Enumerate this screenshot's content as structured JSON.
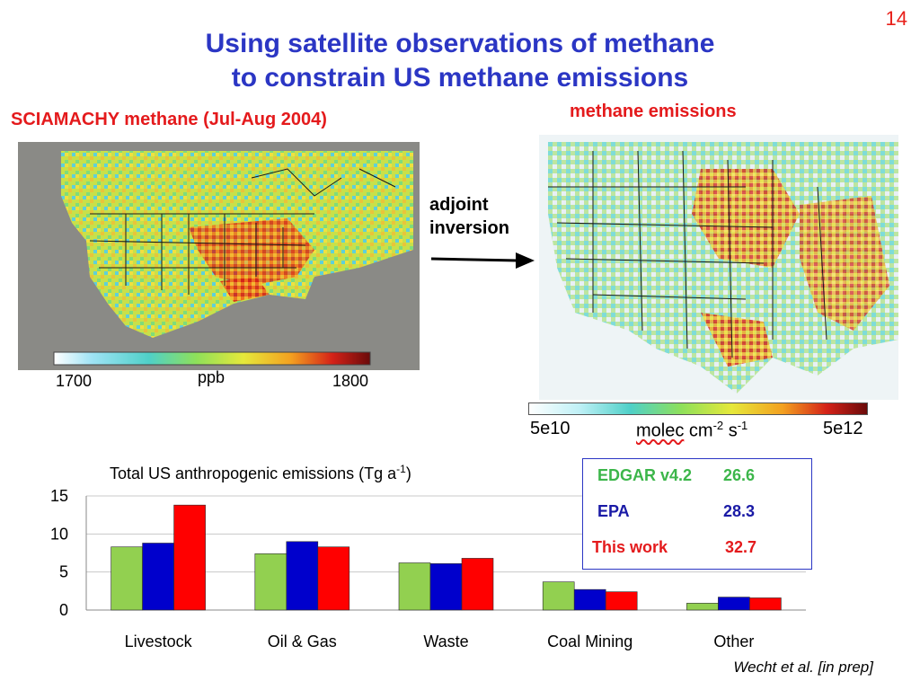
{
  "slide_number": "14",
  "title": {
    "line1": "Using satellite observations of methane",
    "line2": "to constrain US methane emissions"
  },
  "left_panel": {
    "label": "SCIAMACHY methane (Jul-Aug 2004)",
    "colorbar": {
      "min": "1700",
      "unit": "ppb",
      "max": "1800"
    }
  },
  "right_panel": {
    "label": "methane  emissions",
    "colorbar": {
      "min": "5e10",
      "unit_text": "molec",
      "unit_rest": " cm",
      "unit_exp1": "-2",
      "unit_s": " s",
      "unit_exp2": "-1",
      "max": "5e12"
    }
  },
  "arrow_label": {
    "line1": "adjoint",
    "line2": "inversion"
  },
  "totals_box": {
    "rows": [
      {
        "name": "EDGAR v4.2",
        "value": "26.6",
        "color": "#3cb64a"
      },
      {
        "name": "EPA",
        "value": "28.3",
        "color": "#1a1aa6"
      },
      {
        "name": "This work",
        "value": "32.7",
        "color": "#e41a1c"
      }
    ]
  },
  "chart_title": {
    "text": "Total US anthropogenic emissions (Tg a",
    "exp": "-1",
    "close": ")"
  },
  "chart_data": {
    "type": "bar",
    "categories": [
      "Livestock",
      "Oil & Gas",
      "Waste",
      "Coal Mining",
      "Other"
    ],
    "series": [
      {
        "name": "EDGAR v4.2",
        "values": [
          8.3,
          7.4,
          6.2,
          3.7,
          0.9
        ],
        "color": "#92d050"
      },
      {
        "name": "EPA",
        "values": [
          8.8,
          9.0,
          6.1,
          2.7,
          1.7
        ],
        "color": "#0000cc"
      },
      {
        "name": "This work",
        "values": [
          13.8,
          8.3,
          6.8,
          2.4,
          1.6
        ],
        "color": "#ff0000"
      }
    ],
    "ylim": [
      0,
      15
    ],
    "yticks": [
      "0",
      "5",
      "10",
      "15"
    ],
    "grid": "horizontal"
  },
  "citation": "Wecht et al. [in prep]"
}
